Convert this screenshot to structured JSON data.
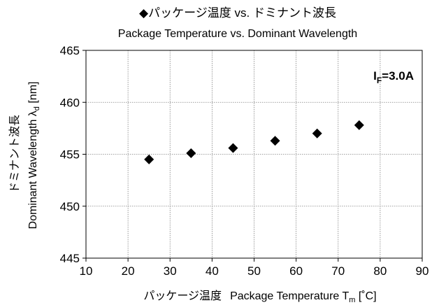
{
  "chart_data": {
    "type": "scatter",
    "title": "◆パッケージ温度 vs. ドミナント波長",
    "subtitle": "Package Temperature vs. Dominant Wavelength",
    "xlabel": {
      "jp": "パッケージ温度",
      "en": "Package Temperature T",
      "sub": "m",
      "unit": " [˚C]"
    },
    "ylabel": {
      "jp": "ドミナント波長",
      "en": "Dominant Wavelength λ",
      "sub": "d",
      "unit": " [nm]"
    },
    "annotation": {
      "main": "I",
      "sub": "F",
      "rest": "=3.0A"
    },
    "xlim": [
      10,
      90
    ],
    "ylim": [
      445,
      465
    ],
    "xticks": [
      10,
      20,
      30,
      40,
      50,
      60,
      70,
      80,
      90
    ],
    "yticks": [
      445,
      450,
      455,
      460,
      465
    ],
    "grid": true,
    "marker": "diamond",
    "series": [
      {
        "x": [
          25,
          35,
          45,
          55,
          65,
          75
        ],
        "y": [
          454.5,
          455.1,
          455.6,
          456.3,
          457.0,
          457.8
        ]
      }
    ]
  },
  "colors": {
    "marker": "#000000",
    "grid": "#808080",
    "axis": "#000000"
  }
}
